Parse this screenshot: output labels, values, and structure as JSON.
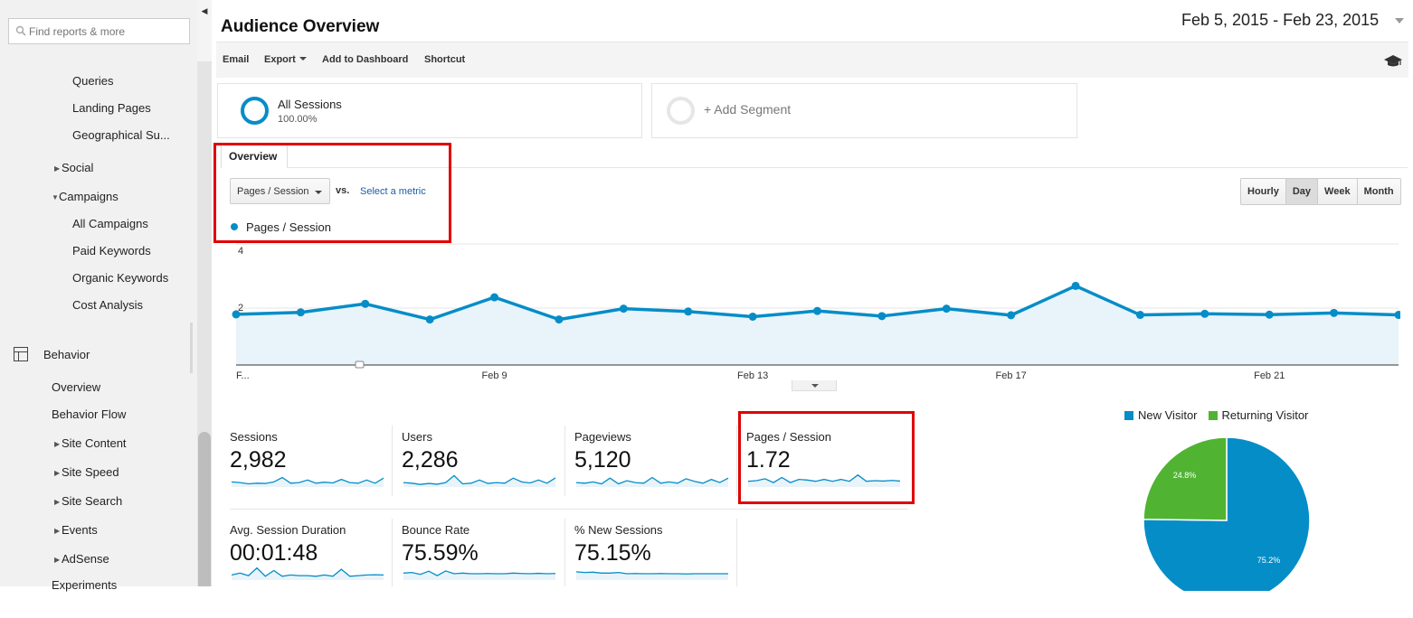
{
  "sidebar": {
    "search_placeholder": "Find reports & more",
    "items": {
      "queries": "Queries",
      "landing_pages": "Landing Pages",
      "geo_summary": "Geographical Su...",
      "social": "Social",
      "campaigns": "Campaigns",
      "all_campaigns": "All Campaigns",
      "paid_keywords": "Paid Keywords",
      "organic_keywords": "Organic Keywords",
      "cost_analysis": "Cost Analysis",
      "behavior": "Behavior",
      "behavior_overview": "Overview",
      "behavior_flow": "Behavior Flow",
      "site_content": "Site Content",
      "site_speed": "Site Speed",
      "site_search": "Site Search",
      "events": "Events",
      "adsense": "AdSense",
      "experiments": "Experiments"
    }
  },
  "header": {
    "title": "Audience Overview",
    "date_range": "Feb 5, 2015 - Feb 23, 2015"
  },
  "toolbar": {
    "email": "Email",
    "export": "Export",
    "add_to_dashboard": "Add to Dashboard",
    "shortcut": "Shortcut"
  },
  "segments": {
    "all_sessions": "All Sessions",
    "all_sessions_pct": "100.00%",
    "add_segment": "+ Add Segment"
  },
  "overview": {
    "tab": "Overview",
    "metric": "Pages / Session",
    "vs": "vs.",
    "select_metric": "Select a metric",
    "legend": "Pages / Session",
    "time_buttons": [
      "Hourly",
      "Day",
      "Week",
      "Month"
    ],
    "active_time": "Day"
  },
  "chart_data": {
    "type": "area",
    "series": [
      {
        "name": "Pages / Session",
        "color": "#058dc7",
        "values": [
          1.78,
          1.85,
          2.15,
          1.6,
          2.38,
          1.6,
          1.98,
          1.88,
          1.7,
          1.9,
          1.72,
          1.98,
          1.75,
          2.78,
          1.76,
          1.8,
          1.77,
          1.83,
          1.76
        ]
      }
    ],
    "x_tick_labels": [
      "F...",
      "Feb 9",
      "Feb 13",
      "Feb 17",
      "Feb 21"
    ],
    "y_tick_labels": [
      "4",
      "2"
    ],
    "ylim": [
      0,
      4
    ],
    "grid": true
  },
  "metrics": [
    {
      "label": "Sessions",
      "value": "2,982",
      "spark": [
        0.4,
        0.35,
        0.25,
        0.3,
        0.28,
        0.4,
        0.75,
        0.3,
        0.35,
        0.55,
        0.3,
        0.38,
        0.32,
        0.6,
        0.35,
        0.3,
        0.55,
        0.3,
        0.7
      ]
    },
    {
      "label": "Users",
      "value": "2,286",
      "spark": [
        0.35,
        0.3,
        0.2,
        0.28,
        0.22,
        0.35,
        0.9,
        0.25,
        0.3,
        0.55,
        0.28,
        0.35,
        0.3,
        0.7,
        0.4,
        0.32,
        0.55,
        0.3,
        0.72
      ]
    },
    {
      "label": "Pageviews",
      "value": "5,120",
      "spark": [
        0.35,
        0.3,
        0.4,
        0.25,
        0.7,
        0.25,
        0.5,
        0.35,
        0.3,
        0.75,
        0.3,
        0.4,
        0.3,
        0.65,
        0.45,
        0.3,
        0.6,
        0.35,
        0.7
      ]
    },
    {
      "label": "Pages / Session",
      "value": "1.72",
      "spark": [
        0.45,
        0.5,
        0.65,
        0.35,
        0.75,
        0.35,
        0.6,
        0.55,
        0.45,
        0.6,
        0.45,
        0.6,
        0.45,
        0.95,
        0.45,
        0.5,
        0.47,
        0.52,
        0.47
      ]
    },
    {
      "label": "Avg. Session Duration",
      "value": "00:01:48",
      "spark": [
        0.4,
        0.55,
        0.35,
        0.95,
        0.3,
        0.75,
        0.3,
        0.4,
        0.35,
        0.35,
        0.3,
        0.4,
        0.3,
        0.85,
        0.3,
        0.35,
        0.4,
        0.42,
        0.4
      ]
    },
    {
      "label": "Bounce Rate",
      "value": "75.59%",
      "spark": [
        0.55,
        0.6,
        0.45,
        0.7,
        0.35,
        0.72,
        0.5,
        0.55,
        0.5,
        0.5,
        0.52,
        0.5,
        0.5,
        0.55,
        0.52,
        0.5,
        0.53,
        0.5,
        0.52
      ]
    },
    {
      "label": "% New Sessions",
      "value": "75.15%",
      "spark": [
        0.65,
        0.6,
        0.62,
        0.55,
        0.55,
        0.6,
        0.5,
        0.52,
        0.5,
        0.5,
        0.52,
        0.5,
        0.5,
        0.48,
        0.5,
        0.5,
        0.5,
        0.5,
        0.5
      ]
    }
  ],
  "pie": {
    "legend": [
      {
        "name": "New Visitor",
        "color": "#058dc7"
      },
      {
        "name": "Returning Visitor",
        "color": "#50b432"
      }
    ],
    "slices": [
      {
        "name": "New Visitor",
        "value": 75.2,
        "label": "75.2%",
        "color": "#058dc7"
      },
      {
        "name": "Returning Visitor",
        "value": 24.8,
        "label": "24.8%",
        "color": "#50b432"
      }
    ]
  }
}
